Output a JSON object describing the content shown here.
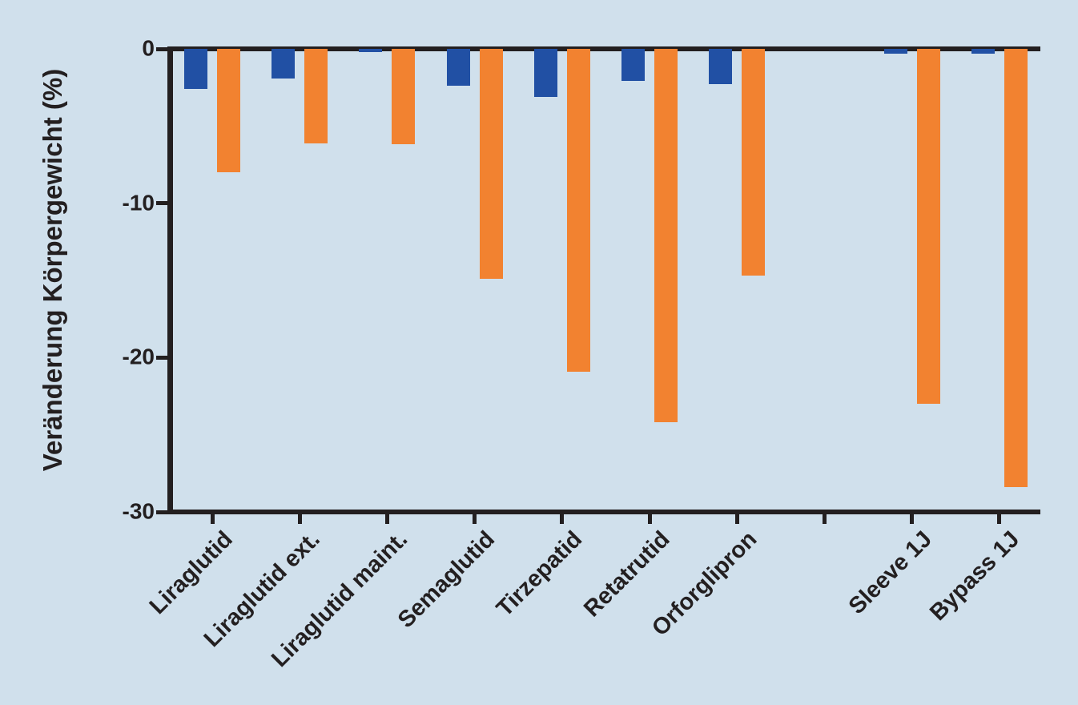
{
  "figure": {
    "background_color": "#d0e0ec",
    "axis_color": "#231f20",
    "text_color": "#231f20"
  },
  "chart_data": {
    "type": "bar",
    "title": "",
    "ylabel": "Veränderung Körpergewicht (%)",
    "xlabel": "",
    "ylim": [
      -30,
      0
    ],
    "y_ticks": [
      0,
      -10,
      -20,
      -30
    ],
    "y_tick_labels": [
      "0",
      "-10",
      "-20",
      "-30"
    ],
    "grid": false,
    "legend": "none",
    "bar_direction": "vertical-negative",
    "x_tick_marks": "one per category slot, including one empty slot between drug and surgery groups",
    "categories": [
      "Liraglutid",
      "Liraglutid ext.",
      "Liraglutid maint.",
      "Semaglutid",
      "Tirzepatid",
      "Retatrutid",
      "Orforglipron",
      "Sleeve 1J",
      "Bypass 1J"
    ],
    "empty_slot_after": "Orforglipron",
    "series": [
      {
        "name": "series-blue",
        "color": "#2150a4",
        "values": [
          -2.6,
          -1.9,
          -0.2,
          -2.4,
          -3.1,
          -2.1,
          -2.3,
          -0.3,
          -0.3
        ]
      },
      {
        "name": "series-orange",
        "color": "#f28230",
        "values": [
          -8.0,
          -6.1,
          -6.2,
          -14.9,
          -20.9,
          -24.2,
          -14.7,
          -23.0,
          -28.4
        ]
      }
    ]
  }
}
